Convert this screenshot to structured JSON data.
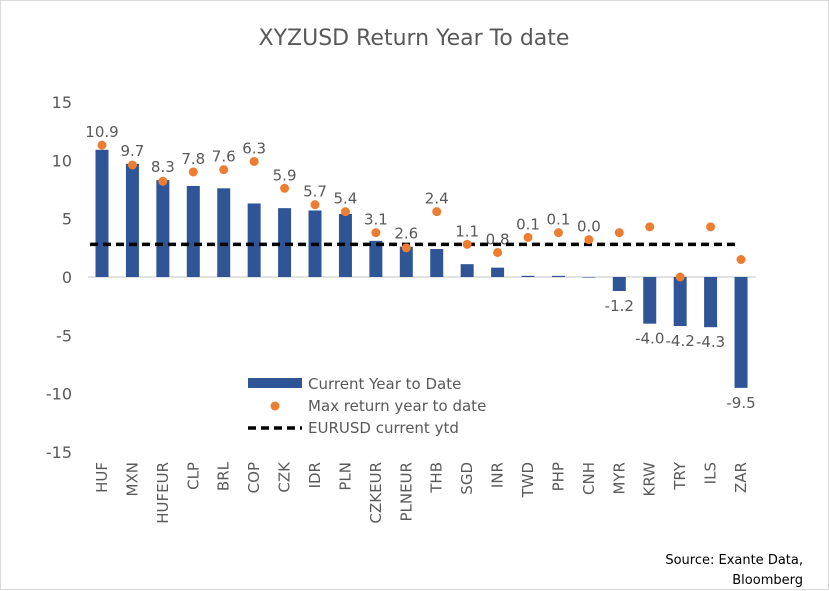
{
  "chart_data": {
    "type": "bar",
    "title": "XYZUSD Return Year To date",
    "categories": [
      "HUF",
      "MXN",
      "HUFEUR",
      "CLP",
      "BRL",
      "COP",
      "CZK",
      "IDR",
      "PLN",
      "CZKEUR",
      "PLNEUR",
      "THB",
      "SGD",
      "INR",
      "TWD",
      "PHP",
      "CNH",
      "MYR",
      "KRW",
      "TRY",
      "ILS",
      "ZAR"
    ],
    "series": [
      {
        "name": "Current Year to Date",
        "kind": "bar",
        "color": "#2F5597",
        "values": [
          10.9,
          9.7,
          8.3,
          7.8,
          7.6,
          6.3,
          5.9,
          5.7,
          5.4,
          3.1,
          2.6,
          2.4,
          1.1,
          0.8,
          0.1,
          0.1,
          0.0,
          -1.2,
          -4.0,
          -4.2,
          -4.3,
          -9.5
        ]
      },
      {
        "name": "Max return year to date",
        "kind": "scatter",
        "color": "#ED7D31",
        "values": [
          11.3,
          9.6,
          8.2,
          9.0,
          9.2,
          9.9,
          7.6,
          6.2,
          5.6,
          3.8,
          2.5,
          5.6,
          2.8,
          2.1,
          3.4,
          3.8,
          3.2,
          3.8,
          4.3,
          0.0,
          4.3,
          1.5
        ]
      },
      {
        "name": "EURUSD current ytd",
        "kind": "line",
        "style": "dashed",
        "color": "#000000",
        "value": 2.8
      }
    ],
    "data_labels": [
      "10.9",
      "9.7",
      "8.3",
      "7.8",
      "7.6",
      "6.3",
      "5.9",
      "5.7",
      "5.4",
      "3.1",
      "2.6",
      "2.4",
      "1.1",
      "0.8",
      "0.1",
      "0.1",
      "0.0",
      "-1.2",
      "-4.0",
      "-4.2",
      "-4.3",
      "-9.5"
    ],
    "ylim": [
      -15,
      15
    ],
    "yticks": [
      15,
      10,
      5,
      0,
      -5,
      -10,
      -15
    ],
    "grid": false,
    "legend_placement": "bottom-center inside",
    "xlabel": "",
    "ylabel": ""
  },
  "source": [
    "Source: Exante Data,",
    "Bloomberg"
  ]
}
